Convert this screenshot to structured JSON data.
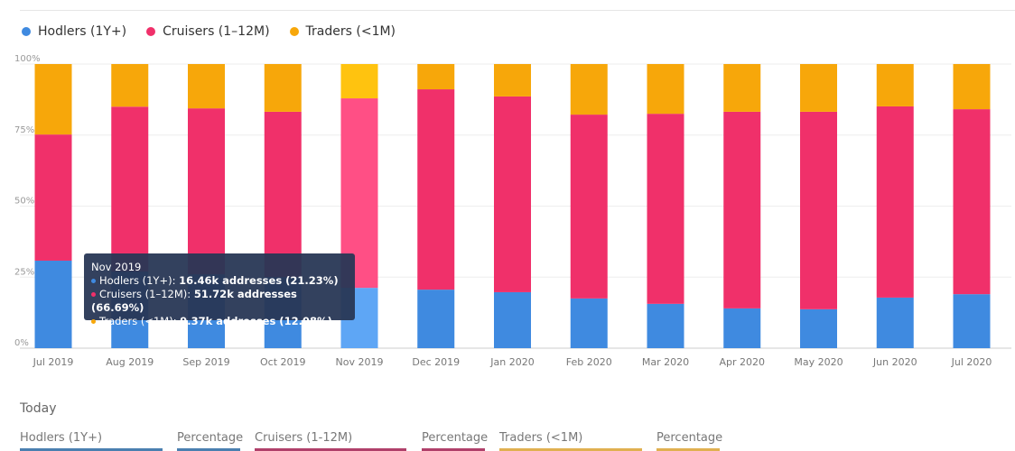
{
  "colors": {
    "hodlers": "#3f8ae0",
    "cruisers": "#f0306a",
    "traders": "#f7a70a",
    "hodlers_hl": "#5ea6f5",
    "cruisers_hl": "#ff4f85",
    "traders_hl": "#ffc30f"
  },
  "chart_data": {
    "type": "bar",
    "stacked": true,
    "percent": true,
    "categories": [
      "Jul 2019",
      "Aug 2019",
      "Sep 2019",
      "Oct 2019",
      "Nov 2019",
      "Dec 2019",
      "Jan 2020",
      "Feb 2020",
      "Mar 2020",
      "Apr 2020",
      "May 2020",
      "Jun 2020",
      "Jul 2020"
    ],
    "series": [
      {
        "name": "Hodlers (1Y+)",
        "values": [
          30.8,
          27,
          26,
          25,
          21.23,
          20.6,
          19.7,
          17.5,
          15.6,
          14,
          13.7,
          17.8,
          19
        ]
      },
      {
        "name": "Cruisers (1–12M)",
        "values": [
          44.4,
          58,
          58.4,
          58.2,
          66.69,
          70.5,
          68.9,
          64.7,
          66.9,
          69.2,
          69.5,
          67.3,
          65.1
        ]
      },
      {
        "name": "Traders (<1M)",
        "values": [
          24.8,
          15,
          15.6,
          16.8,
          12.08,
          8.9,
          11.4,
          17.8,
          17.5,
          16.8,
          16.8,
          14.9,
          15.9
        ]
      }
    ],
    "yticks": [
      "0%",
      "25%",
      "50%",
      "75%",
      "100%"
    ],
    "ylim": [
      0,
      100
    ],
    "grid": true,
    "legend": "top-left",
    "highlighted": "Nov 2019"
  },
  "tooltip": {
    "title": "Nov 2019",
    "lines": [
      {
        "label": "Hodlers (1Y+): ",
        "value": "16.46k addresses (21.23%)"
      },
      {
        "label": "Cruisers (1–12M): ",
        "value": "51.72k addresses (66.69%)"
      },
      {
        "label": "Traders (<1M): ",
        "value": "9.37k addresses (12.08%)"
      }
    ]
  },
  "today": {
    "title": "Today",
    "columns": [
      "Hodlers (1Y+)",
      "Percentage",
      "Cruisers (1-12M)",
      "Percentage",
      "Traders (<1M)",
      "Percentage"
    ]
  }
}
